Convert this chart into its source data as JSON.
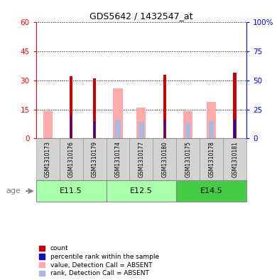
{
  "title": "GDS5642 / 1432547_at",
  "samples": [
    "GSM1310173",
    "GSM1310176",
    "GSM1310179",
    "GSM1310174",
    "GSM1310177",
    "GSM1310180",
    "GSM1310175",
    "GSM1310178",
    "GSM1310181"
  ],
  "age_groups": [
    {
      "label": "E11.5",
      "start": 0,
      "end": 2
    },
    {
      "label": "E12.5",
      "start": 3,
      "end": 5
    },
    {
      "label": "E14.5",
      "start": 6,
      "end": 8
    }
  ],
  "count_values": [
    0,
    32,
    31,
    0,
    0,
    33,
    0,
    0,
    34
  ],
  "rank_values": [
    0,
    20,
    15,
    0,
    0,
    16,
    0,
    0,
    16
  ],
  "absent_value": [
    14,
    0,
    0,
    26,
    16,
    0,
    14,
    19,
    0
  ],
  "absent_rank": [
    0,
    0,
    0,
    16,
    14,
    0,
    13,
    15,
    0
  ],
  "ylim_left": [
    0,
    60
  ],
  "ylim_right": [
    0,
    100
  ],
  "yticks_left": [
    0,
    15,
    30,
    45,
    60
  ],
  "yticks_right": [
    0,
    25,
    50,
    75,
    100
  ],
  "ytick_labels_right": [
    "0",
    "25",
    "50",
    "75",
    "100%"
  ],
  "bar_color_red": "#CC0000",
  "bar_color_blue": "#1111BB",
  "bar_color_pink": "#FFAAAA",
  "bar_color_lblue": "#AABBDD",
  "legend_items": [
    {
      "color": "#CC0000",
      "label": "count"
    },
    {
      "color": "#1111BB",
      "label": "percentile rank within the sample"
    },
    {
      "color": "#FFAAAA",
      "label": "value, Detection Call = ABSENT"
    },
    {
      "color": "#AABBDD",
      "label": "rank, Detection Call = ABSENT"
    }
  ],
  "age_label": "age",
  "green_light": "#AAFFAA",
  "green_dark": "#44CC44",
  "gray_box": "#D3D3D3"
}
